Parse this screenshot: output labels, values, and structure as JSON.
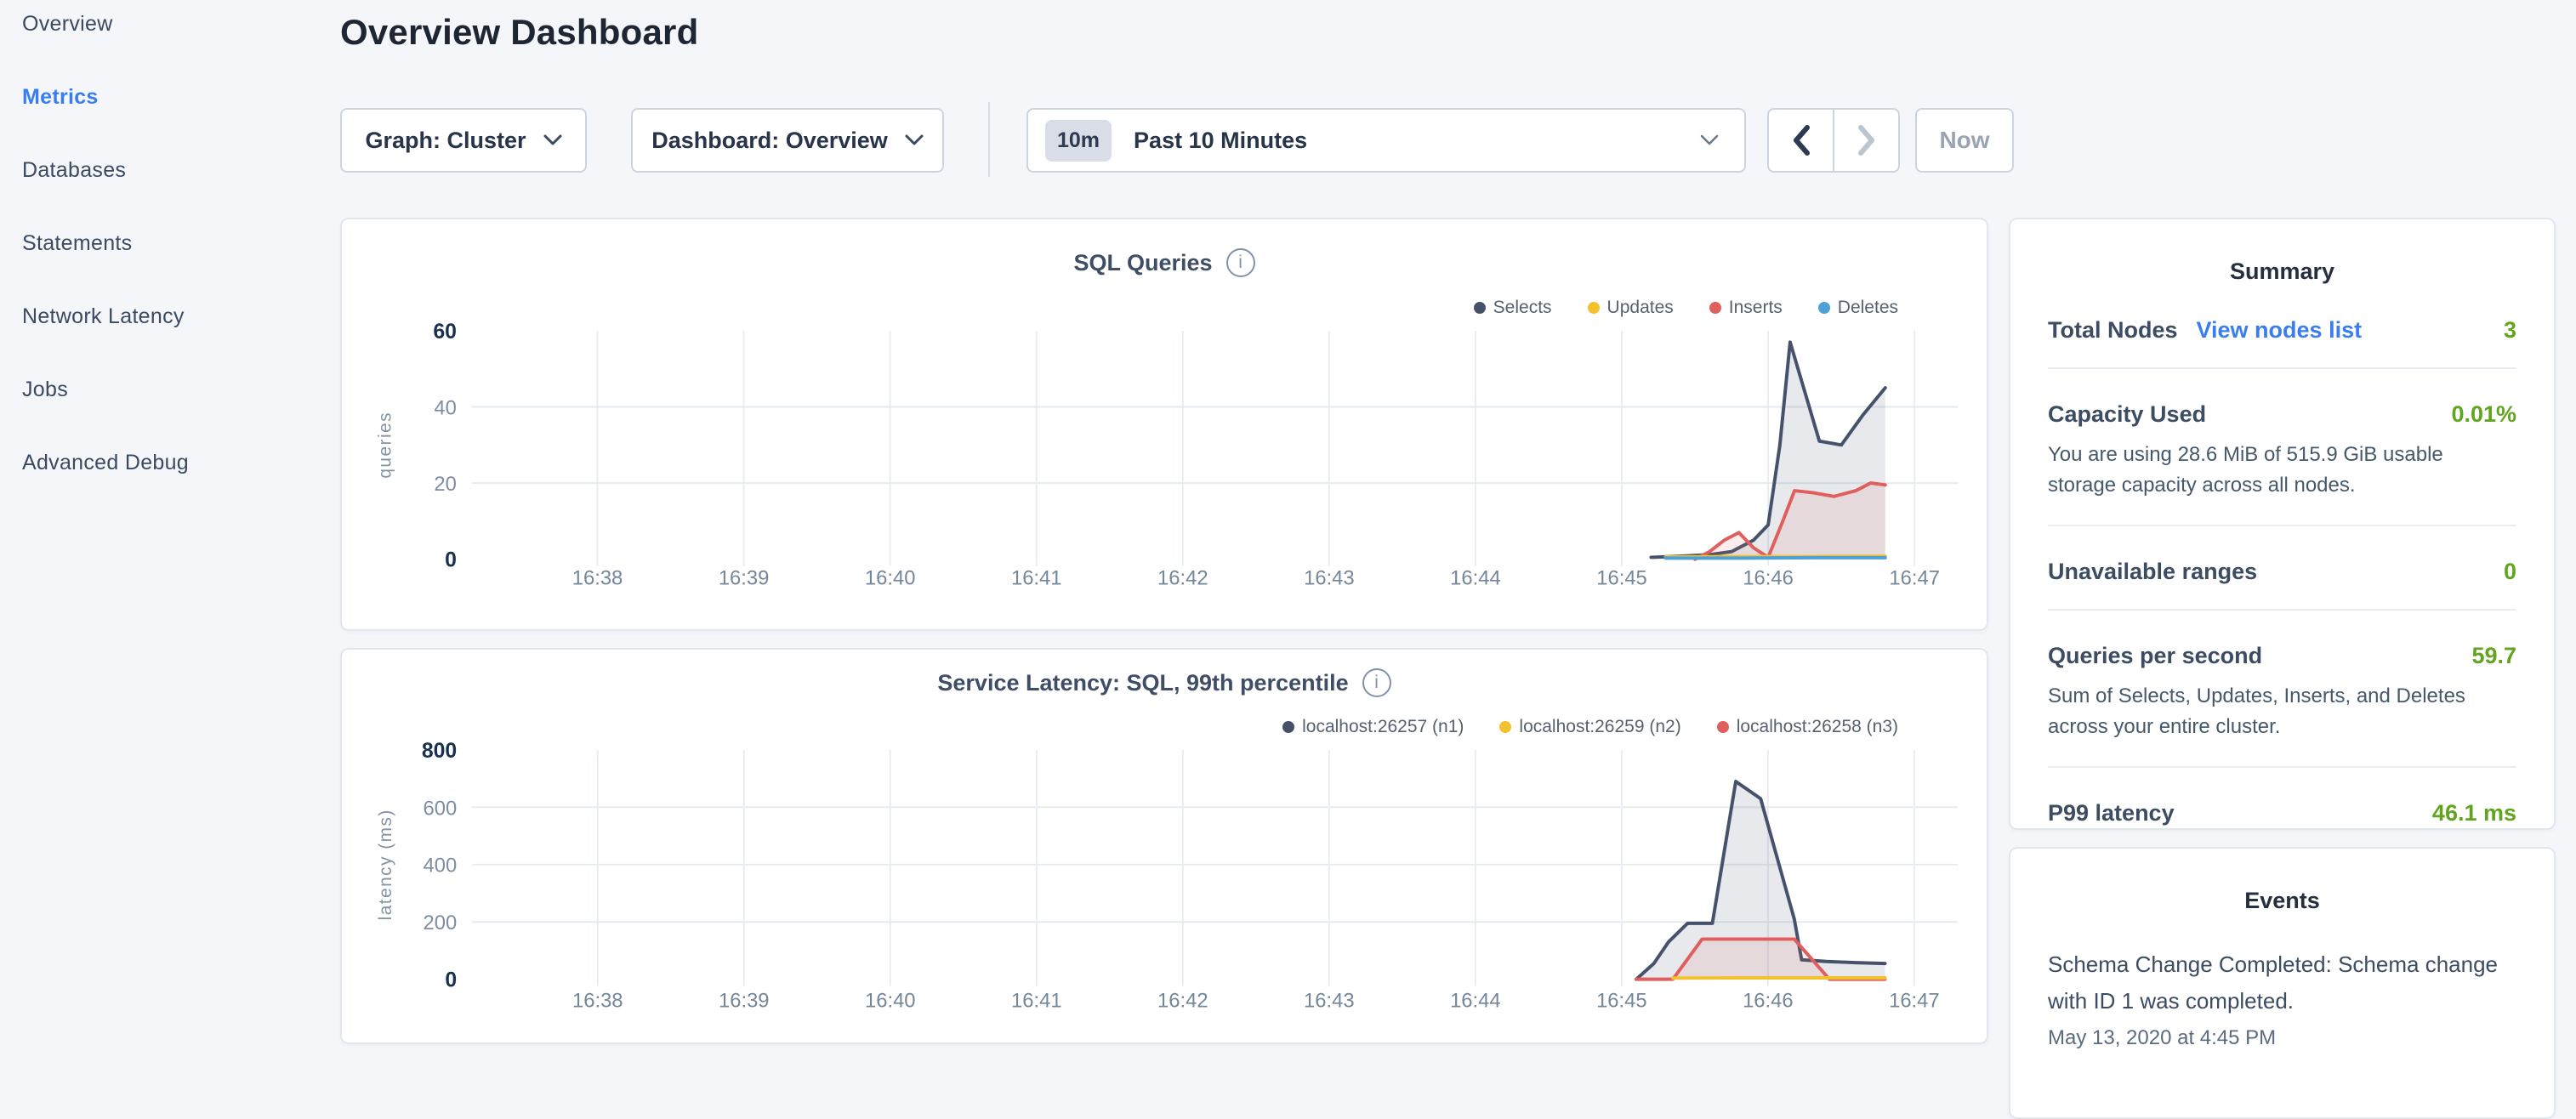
{
  "sidebar": {
    "items": [
      {
        "label": "Overview",
        "active": false
      },
      {
        "label": "Metrics",
        "active": true
      },
      {
        "label": "Databases",
        "active": false
      },
      {
        "label": "Statements",
        "active": false
      },
      {
        "label": "Network Latency",
        "active": false
      },
      {
        "label": "Jobs",
        "active": false
      },
      {
        "label": "Advanced Debug",
        "active": false
      }
    ]
  },
  "header": {
    "title": "Overview Dashboard"
  },
  "controls": {
    "graph_dropdown": "Graph: Cluster",
    "dashboard_dropdown": "Dashboard: Overview",
    "time_badge": "10m",
    "time_label": "Past 10 Minutes",
    "now_label": "Now"
  },
  "icons": {
    "info": "i"
  },
  "colors": {
    "accent_blue": "#3a7df0",
    "value_green": "#62a420",
    "series_navy": "#46526b",
    "series_yellow": "#f2c12c",
    "series_red": "#e05e5e",
    "series_blue": "#4da0d8",
    "navy_fill": "rgba(70,82,107,0.13)",
    "red_fill": "rgba(224,94,94,0.11)"
  },
  "summary": {
    "heading": "Summary",
    "total_nodes_label": "Total Nodes",
    "total_nodes_link": "View nodes list",
    "total_nodes_value": "3",
    "capacity_label": "Capacity Used",
    "capacity_value": "0.01%",
    "capacity_desc": "You are using 28.6 MiB of 515.9 GiB usable storage capacity across all nodes.",
    "unavailable_label": "Unavailable ranges",
    "unavailable_value": "0",
    "qps_label": "Queries per second",
    "qps_value": "59.7",
    "qps_desc": "Sum of Selects, Updates, Inserts, and Deletes across your entire cluster.",
    "p99_label": "P99 latency",
    "p99_value": "46.1 ms"
  },
  "events": {
    "heading": "Events",
    "event_text": "Schema Change Completed: Schema change with ID 1 was completed.",
    "event_time": "May 13, 2020 at 4:45 PM"
  },
  "chart_data": [
    {
      "type": "area",
      "title": "SQL Queries",
      "ylabel": "queries",
      "ylim": [
        0,
        60
      ],
      "y_ticks": [
        0,
        20,
        40,
        60
      ],
      "x_ticks": [
        "16:38",
        "16:39",
        "16:40",
        "16:41",
        "16:42",
        "16:43",
        "16:44",
        "16:45",
        "16:46",
        "16:47"
      ],
      "x_unit": "minutes after 16:00, ticks evenly spaced",
      "grid": true,
      "legend_position": "top-right",
      "series": [
        {
          "name": "Selects",
          "color": "#46526b",
          "fill": "rgba(70,82,107,0.13)",
          "x": [
            45.2,
            45.4,
            45.6,
            45.75,
            45.9,
            46.0,
            46.08,
            46.15,
            46.25,
            46.35,
            46.5,
            46.65,
            46.8
          ],
          "values": [
            0.5,
            0.8,
            1.2,
            2,
            5,
            9,
            30,
            57,
            44,
            31,
            30,
            38,
            45
          ]
        },
        {
          "name": "Inserts",
          "color": "#e05e5e",
          "fill": "rgba(224,94,94,0.11)",
          "x": [
            45.5,
            45.6,
            45.7,
            45.8,
            45.9,
            46.0,
            46.1,
            46.18,
            46.3,
            46.45,
            46.6,
            46.7,
            46.8
          ],
          "values": [
            0,
            2,
            5,
            7,
            3,
            0.5,
            10,
            18,
            17.5,
            16.5,
            18,
            20,
            19.5
          ]
        },
        {
          "name": "Updates",
          "color": "#f2c12c",
          "fill": null,
          "x": [
            45.3,
            45.8,
            46.3,
            46.8
          ],
          "values": [
            0.6,
            0.7,
            0.7,
            0.8
          ]
        },
        {
          "name": "Deletes",
          "color": "#4da0d8",
          "fill": null,
          "x": [
            45.3,
            45.8,
            46.3,
            46.8
          ],
          "values": [
            0.3,
            0.3,
            0.4,
            0.4
          ]
        }
      ],
      "legend_order": [
        "Selects",
        "Updates",
        "Inserts",
        "Deletes"
      ]
    },
    {
      "type": "area",
      "title": "Service Latency: SQL, 99th percentile",
      "ylabel": "latency (ms)",
      "ylim": [
        0,
        800
      ],
      "y_ticks": [
        0,
        200,
        400,
        600,
        800
      ],
      "x_ticks": [
        "16:38",
        "16:39",
        "16:40",
        "16:41",
        "16:42",
        "16:43",
        "16:44",
        "16:45",
        "16:46",
        "16:47"
      ],
      "x_unit": "minutes after 16:00, ticks evenly spaced",
      "grid": true,
      "legend_position": "top-right",
      "series": [
        {
          "name": "localhost:26257 (n1)",
          "color": "#46526b",
          "fill": "rgba(70,82,107,0.13)",
          "x": [
            45.1,
            45.22,
            45.32,
            45.45,
            45.62,
            45.78,
            45.95,
            46.18,
            46.23,
            46.4,
            46.6,
            46.8
          ],
          "values": [
            0,
            55,
            130,
            195,
            195,
            690,
            630,
            210,
            68,
            62,
            58,
            55
          ]
        },
        {
          "name": "localhost:26258 (n3)",
          "color": "#e05e5e",
          "fill": "rgba(224,94,94,0.11)",
          "x": [
            45.1,
            45.35,
            45.45,
            45.55,
            46.18,
            46.42,
            46.8
          ],
          "values": [
            0,
            0,
            70,
            140,
            140,
            0,
            0
          ]
        },
        {
          "name": "localhost:26259 (n2)",
          "color": "#f2c12c",
          "fill": null,
          "x": [
            45.35,
            45.9,
            46.4,
            46.8
          ],
          "values": [
            4,
            5,
            5,
            5
          ]
        }
      ],
      "legend_order": [
        "localhost:26257 (n1)",
        "localhost:26259 (n2)",
        "localhost:26258 (n3)"
      ]
    }
  ]
}
